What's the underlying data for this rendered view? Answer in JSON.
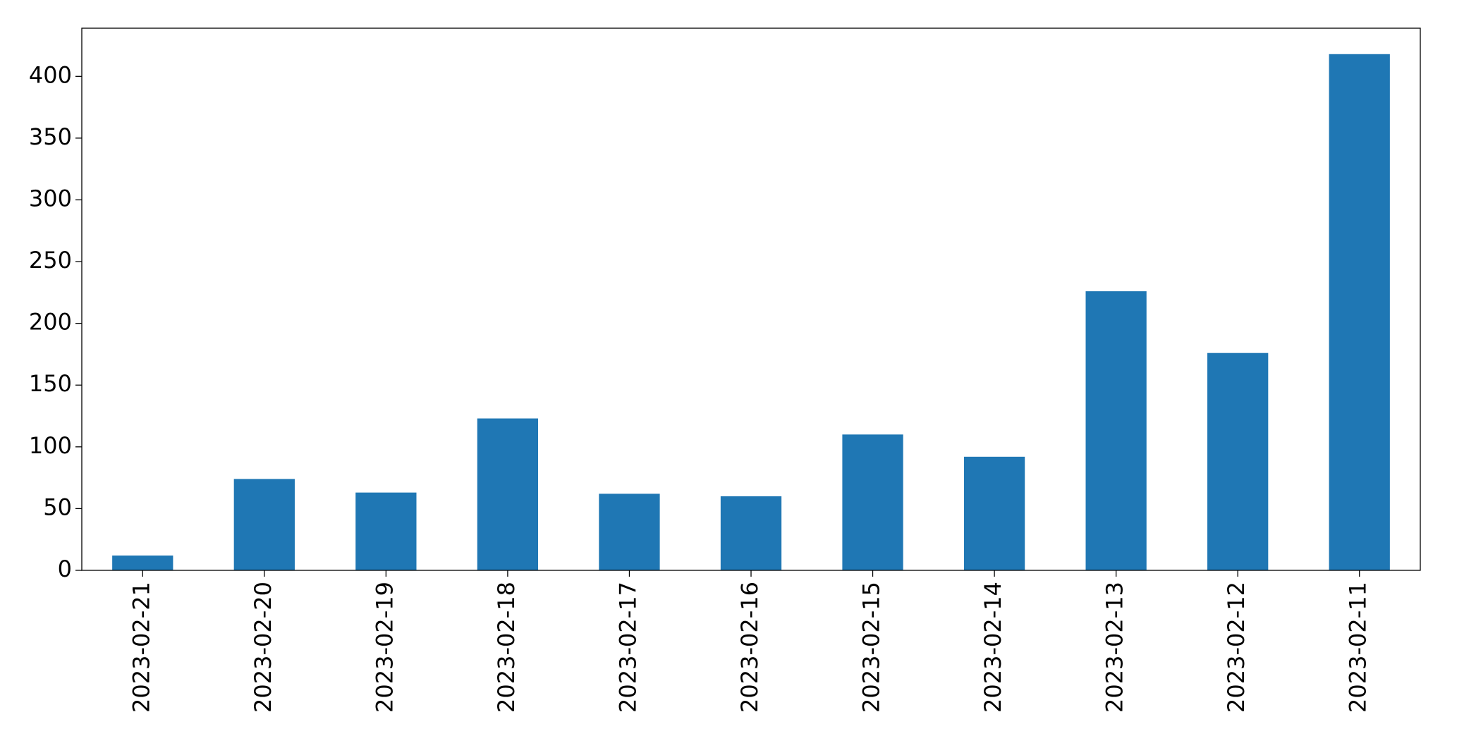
{
  "chart_data": {
    "type": "bar",
    "categories": [
      "2023-02-21",
      "2023-02-20",
      "2023-02-19",
      "2023-02-18",
      "2023-02-17",
      "2023-02-16",
      "2023-02-15",
      "2023-02-14",
      "2023-02-13",
      "2023-02-12",
      "2023-02-11"
    ],
    "values": [
      12,
      74,
      63,
      123,
      62,
      60,
      110,
      92,
      226,
      176,
      418
    ],
    "color": "#1f77b4",
    "ylim": [
      0,
      439
    ],
    "yticks": [
      0,
      50,
      100,
      150,
      200,
      250,
      300,
      350,
      400
    ],
    "grid": false
  }
}
